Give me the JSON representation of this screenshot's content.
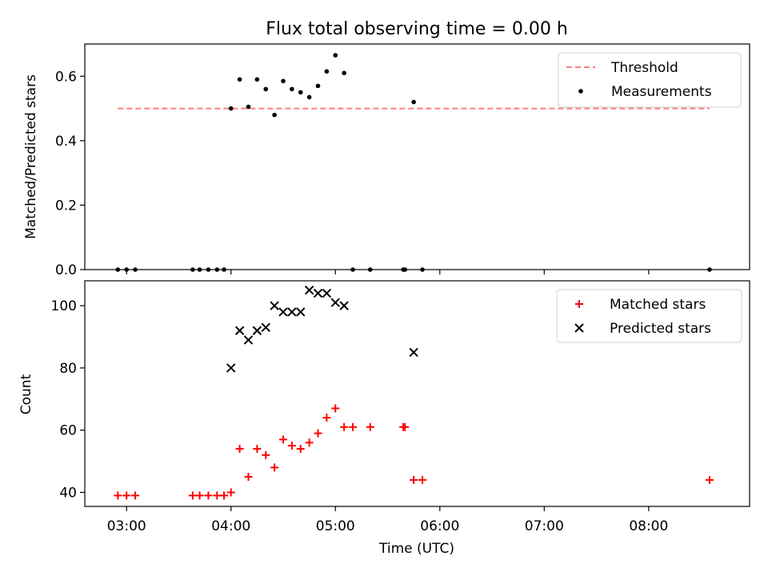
{
  "chart_data": [
    {
      "type": "scatter",
      "title": "Flux total observing time = 0.00 h",
      "xlabel": "",
      "ylabel": "Matched/Predicted stars",
      "xlim": [
        "02:36",
        "08:58"
      ],
      "ylim": [
        0,
        0.7
      ],
      "yticks": [
        0.0,
        0.2,
        0.4,
        0.6
      ],
      "yticklabels": [
        "0.0",
        "0.2",
        "0.4",
        "0.6"
      ],
      "xticks": [
        "03:00",
        "04:00",
        "05:00",
        "06:00",
        "07:00",
        "08:00"
      ],
      "grid": false,
      "legend_position": "upper right",
      "series": [
        {
          "name": "Threshold",
          "kind": "line",
          "style": "dashed",
          "color": "#ff7f7f",
          "x": [
            "02:55",
            "08:35"
          ],
          "y": [
            0.5,
            0.5
          ]
        },
        {
          "name": "Measurements",
          "kind": "scatter",
          "marker": "dot",
          "color": "#000000",
          "x": [
            "02:55",
            "03:00",
            "03:05",
            "03:38",
            "03:42",
            "03:47",
            "03:52",
            "03:56",
            "04:00",
            "04:05",
            "04:10",
            "04:15",
            "04:20",
            "04:25",
            "04:30",
            "04:35",
            "04:40",
            "04:45",
            "04:50",
            "04:55",
            "05:00",
            "05:05",
            "05:10",
            "05:20",
            "05:39",
            "05:40",
            "05:45",
            "05:50",
            "08:35"
          ],
          "y": [
            0,
            0,
            0,
            0,
            0,
            0,
            0,
            0,
            0.5,
            0.59,
            0.505,
            0.59,
            0.56,
            0.48,
            0.585,
            0.56,
            0.55,
            0.535,
            0.57,
            0.615,
            0.665,
            0.61,
            0,
            0,
            0,
            0,
            0.52,
            0,
            0
          ]
        }
      ]
    },
    {
      "type": "scatter",
      "title": "",
      "xlabel": "Time (UTC)",
      "ylabel": "Count",
      "xlim": [
        "02:36",
        "08:58"
      ],
      "ylim": [
        35.5,
        108
      ],
      "yticks": [
        40,
        60,
        80,
        100
      ],
      "xticks": [
        "03:00",
        "04:00",
        "05:00",
        "06:00",
        "07:00",
        "08:00"
      ],
      "grid": false,
      "legend_position": "upper right",
      "series": [
        {
          "name": "Matched stars",
          "kind": "scatter",
          "marker": "plus",
          "color": "#ff0000",
          "x": [
            "02:55",
            "03:00",
            "03:05",
            "03:38",
            "03:42",
            "03:47",
            "03:52",
            "03:56",
            "04:00",
            "04:05",
            "04:10",
            "04:15",
            "04:20",
            "04:25",
            "04:30",
            "04:35",
            "04:40",
            "04:45",
            "04:50",
            "04:55",
            "05:00",
            "05:05",
            "05:10",
            "05:20",
            "05:39",
            "05:40",
            "05:45",
            "05:50",
            "08:35"
          ],
          "y": [
            39,
            39,
            39,
            39,
            39,
            39,
            39,
            39,
            40,
            54,
            45,
            54,
            52,
            48,
            57,
            55,
            54,
            56,
            59,
            64,
            67,
            61,
            61,
            61,
            61,
            61,
            44,
            44,
            44
          ]
        },
        {
          "name": "Predicted stars",
          "kind": "scatter",
          "marker": "x",
          "color": "#000000",
          "x": [
            "04:00",
            "04:05",
            "04:10",
            "04:15",
            "04:20",
            "04:25",
            "04:30",
            "04:35",
            "04:40",
            "04:45",
            "04:50",
            "04:55",
            "05:00",
            "05:05",
            "05:45"
          ],
          "y": [
            80,
            92,
            89,
            92,
            93,
            100,
            98,
            98,
            98,
            105,
            104,
            104,
            101,
            100,
            85
          ]
        }
      ]
    }
  ]
}
